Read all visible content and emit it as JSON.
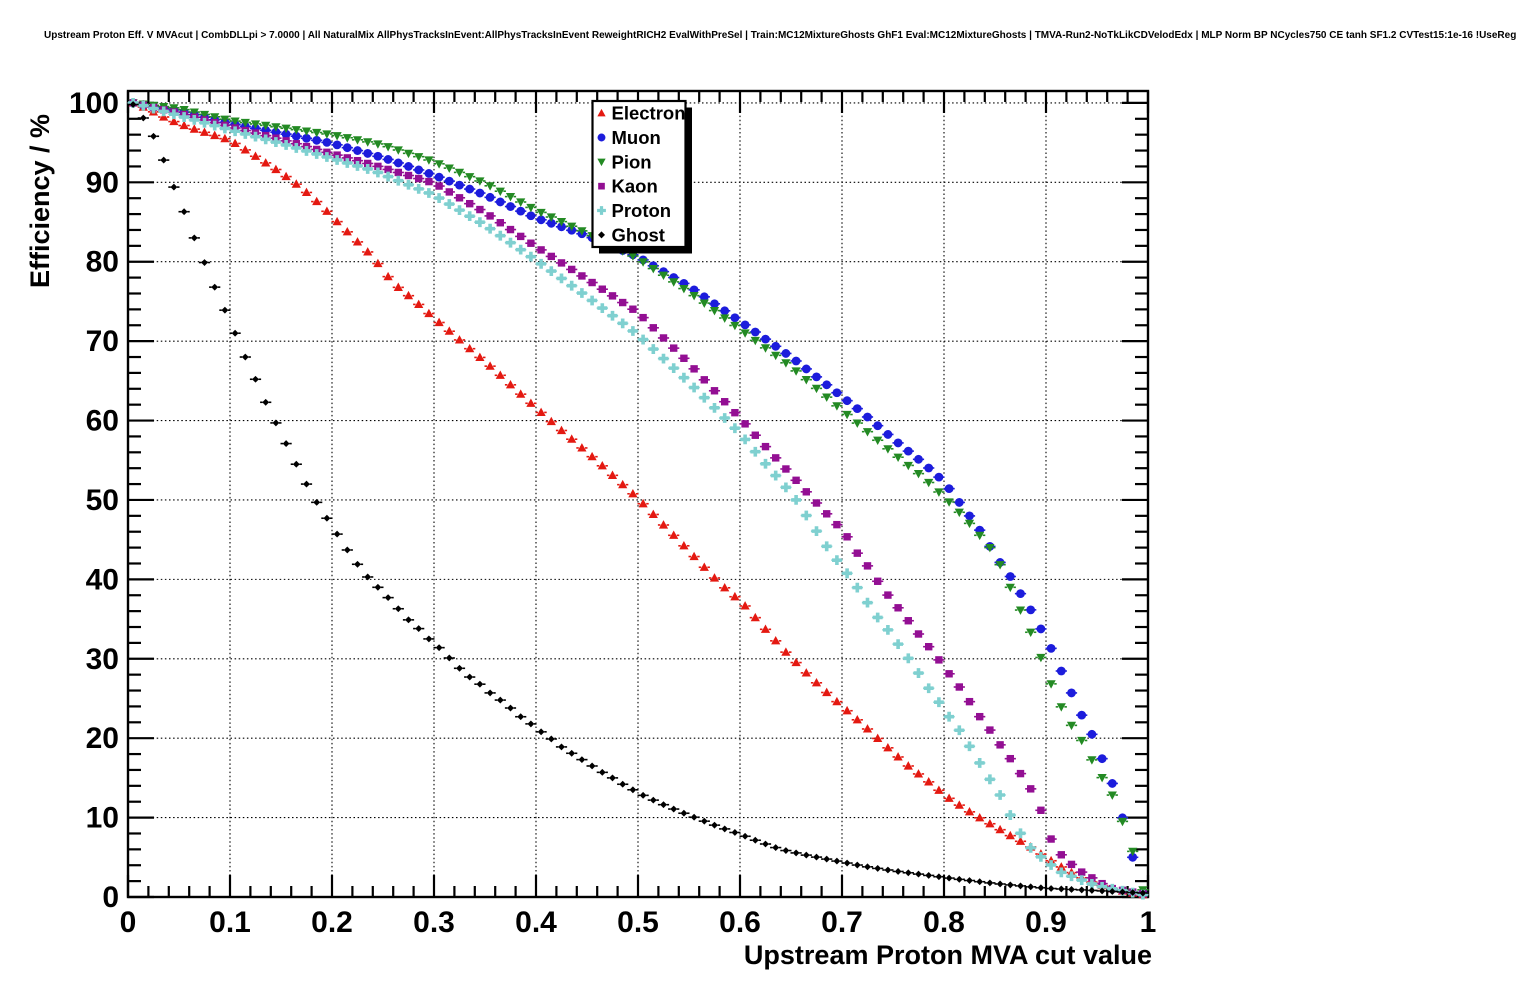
{
  "chart_data": {
    "type": "scatter",
    "title": "Upstream Proton Eff. V MVAcut | CombDLLpi > 7.0000 | All NaturalMix AllPhysTracksInEvent:AllPhysTracksInEvent ReweightRICH2 EvalWithPreSel | Train:MC12MixtureGhosts GhF1 Eval:MC12MixtureGhosts | TMVA-Run2-NoTkLikCDVelodEdx | MLP Norm BP NCycles750 CE tanh SF1.2 CVTest15:1e-16 !UseReg",
    "xlabel": "Upstream Proton MVA cut value",
    "ylabel": "Efficiency / %",
    "xlim": [
      0,
      1
    ],
    "ylim": [
      0,
      101.5
    ],
    "grid": "dotted",
    "legend_position": "top-center-inside",
    "x_ticks": {
      "values": [
        0,
        0.1,
        0.2,
        0.3,
        0.4,
        0.5,
        0.6,
        0.7,
        0.8,
        0.9,
        1
      ],
      "labels": [
        "0",
        "0.1",
        "0.2",
        "0.3",
        "0.4",
        "0.5",
        "0.6",
        "0.7",
        "0.8",
        "0.9",
        "1"
      ],
      "minor_step": 0.02
    },
    "y_ticks": {
      "values": [
        0,
        10,
        20,
        30,
        40,
        50,
        60,
        70,
        80,
        90,
        100
      ],
      "labels": [
        "0",
        "10",
        "20",
        "30",
        "40",
        "50",
        "60",
        "70",
        "80",
        "90",
        "100"
      ],
      "minor_step": 2
    },
    "marker_sampling": {
      "start": 0.005,
      "step": 0.01,
      "count": 100
    },
    "series": [
      {
        "name": "Electron",
        "color": "#e41911",
        "marker": "triangle-up",
        "control_points": [
          [
            0.005,
            100
          ],
          [
            0.02,
            99.2
          ],
          [
            0.04,
            97.9
          ],
          [
            0.06,
            96.9
          ],
          [
            0.08,
            96.1
          ],
          [
            0.1,
            95.3
          ],
          [
            0.126,
            93.2
          ],
          [
            0.15,
            91.2
          ],
          [
            0.17,
            89.3
          ],
          [
            0.19,
            87
          ],
          [
            0.21,
            84.4
          ],
          [
            0.24,
            80.6
          ],
          [
            0.26,
            77.3
          ],
          [
            0.28,
            75.2
          ],
          [
            0.3,
            72.9
          ],
          [
            0.32,
            70.7
          ],
          [
            0.34,
            68.5
          ],
          [
            0.36,
            66.3
          ],
          [
            0.38,
            63.9
          ],
          [
            0.4,
            61.6
          ],
          [
            0.42,
            59.3
          ],
          [
            0.44,
            57.1
          ],
          [
            0.46,
            54.9
          ],
          [
            0.48,
            52.5
          ],
          [
            0.5,
            50.2
          ],
          [
            0.52,
            47.5
          ],
          [
            0.54,
            44.9
          ],
          [
            0.56,
            42.2
          ],
          [
            0.58,
            39.5
          ],
          [
            0.604,
            36.8
          ],
          [
            0.623,
            34
          ],
          [
            0.643,
            31.1
          ],
          [
            0.662,
            28.6
          ],
          [
            0.682,
            26.1
          ],
          [
            0.702,
            23.8
          ],
          [
            0.723,
            21.4
          ],
          [
            0.744,
            18.9
          ],
          [
            0.764,
            16.6
          ],
          [
            0.785,
            14.5
          ],
          [
            0.803,
            12.6
          ],
          [
            0.824,
            10.8
          ],
          [
            0.844,
            9.3
          ],
          [
            0.864,
            7.8
          ],
          [
            0.885,
            6.3
          ],
          [
            0.902,
            4.8
          ],
          [
            0.92,
            3.4
          ],
          [
            0.94,
            2.1
          ],
          [
            0.96,
            1.2
          ],
          [
            0.98,
            0.6
          ],
          [
            0.995,
            0.3
          ]
        ]
      },
      {
        "name": "Muon",
        "color": "#1c1cdc",
        "marker": "circle",
        "control_points": [
          [
            0.005,
            100
          ],
          [
            0.05,
            99
          ],
          [
            0.1,
            97.4
          ],
          [
            0.15,
            96.2
          ],
          [
            0.2,
            94.9
          ],
          [
            0.25,
            93.1
          ],
          [
            0.3,
            90.9
          ],
          [
            0.35,
            88.4
          ],
          [
            0.4,
            85.5
          ],
          [
            0.45,
            83.3
          ],
          [
            0.5,
            80.6
          ],
          [
            0.55,
            76.9
          ],
          [
            0.6,
            72.5
          ],
          [
            0.65,
            68
          ],
          [
            0.7,
            63
          ],
          [
            0.72,
            61
          ],
          [
            0.75,
            57.7
          ],
          [
            0.78,
            54.6
          ],
          [
            0.8,
            52.3
          ],
          [
            0.812,
            50.2
          ],
          [
            0.822,
            48.5
          ],
          [
            0.832,
            46.8
          ],
          [
            0.843,
            44.6
          ],
          [
            0.851,
            42.8
          ],
          [
            0.863,
            40.8
          ],
          [
            0.873,
            38.6
          ],
          [
            0.884,
            36.4
          ],
          [
            0.894,
            34
          ],
          [
            0.904,
            31.6
          ],
          [
            0.913,
            29
          ],
          [
            0.923,
            26.3
          ],
          [
            0.932,
            23.6
          ],
          [
            0.944,
            20.8
          ],
          [
            0.953,
            18
          ],
          [
            0.963,
            15.1
          ],
          [
            0.972,
            11.5
          ],
          [
            0.983,
            5.9
          ],
          [
            0.995,
            0.5
          ]
        ]
      },
      {
        "name": "Pion",
        "color": "#238a23",
        "marker": "triangle-down",
        "control_points": [
          [
            0.005,
            100
          ],
          [
            0.05,
            99.3
          ],
          [
            0.1,
            97.8
          ],
          [
            0.15,
            96.9
          ],
          [
            0.2,
            96
          ],
          [
            0.25,
            94.7
          ],
          [
            0.3,
            92.6
          ],
          [
            0.35,
            89.9
          ],
          [
            0.4,
            86.5
          ],
          [
            0.45,
            83.6
          ],
          [
            0.5,
            80.4
          ],
          [
            0.55,
            76.2
          ],
          [
            0.6,
            71.5
          ],
          [
            0.65,
            66.8
          ],
          [
            0.7,
            61.3
          ],
          [
            0.75,
            55.9
          ],
          [
            0.78,
            52.8
          ],
          [
            0.8,
            50.4
          ],
          [
            0.82,
            47.8
          ],
          [
            0.84,
            44.8
          ],
          [
            0.85,
            43.2
          ],
          [
            0.86,
            40.5
          ],
          [
            0.87,
            37.5
          ],
          [
            0.881,
            34.5
          ],
          [
            0.891,
            31.6
          ],
          [
            0.901,
            28
          ],
          [
            0.911,
            25.1
          ],
          [
            0.92,
            22.5
          ],
          [
            0.933,
            20.2
          ],
          [
            0.951,
            15.8
          ],
          [
            0.963,
            13.5
          ],
          [
            0.982,
            7.2
          ],
          [
            0.995,
            0.9
          ]
        ]
      },
      {
        "name": "Kaon",
        "color": "#930f93",
        "marker": "square",
        "control_points": [
          [
            0.005,
            100
          ],
          [
            0.05,
            98.7
          ],
          [
            0.1,
            97
          ],
          [
            0.15,
            95.4
          ],
          [
            0.2,
            93.6
          ],
          [
            0.24,
            92.2
          ],
          [
            0.3,
            89.9
          ],
          [
            0.35,
            86.2
          ],
          [
            0.4,
            81.9
          ],
          [
            0.45,
            77.8
          ],
          [
            0.5,
            73.6
          ],
          [
            0.55,
            67.2
          ],
          [
            0.6,
            60.3
          ],
          [
            0.63,
            56
          ],
          [
            0.65,
            53.2
          ],
          [
            0.67,
            50.3
          ],
          [
            0.703,
            45.8
          ],
          [
            0.713,
            43.6
          ],
          [
            0.723,
            42.1
          ],
          [
            0.732,
            40.3
          ],
          [
            0.742,
            38.5
          ],
          [
            0.752,
            36.9
          ],
          [
            0.762,
            35.3
          ],
          [
            0.772,
            33.6
          ],
          [
            0.782,
            32
          ],
          [
            0.792,
            30.4
          ],
          [
            0.802,
            28.6
          ],
          [
            0.813,
            26.8
          ],
          [
            0.822,
            25.2
          ],
          [
            0.832,
            23.2
          ],
          [
            0.843,
            21.4
          ],
          [
            0.853,
            19.5
          ],
          [
            0.863,
            17.8
          ],
          [
            0.873,
            15.9
          ],
          [
            0.883,
            14.1
          ],
          [
            0.893,
            11.7
          ],
          [
            0.903,
            7.8
          ],
          [
            0.911,
            5.8
          ],
          [
            0.93,
            3.5
          ],
          [
            0.963,
            1.1
          ],
          [
            0.995,
            0.4
          ]
        ]
      },
      {
        "name": "Proton",
        "color": "#7fd0d0",
        "marker": "plus",
        "control_points": [
          [
            0.005,
            100
          ],
          [
            0.05,
            98.4
          ],
          [
            0.1,
            96.6
          ],
          [
            0.15,
            94.9
          ],
          [
            0.2,
            93
          ],
          [
            0.24,
            91.5
          ],
          [
            0.3,
            88.4
          ],
          [
            0.35,
            84.6
          ],
          [
            0.4,
            80.2
          ],
          [
            0.45,
            75.6
          ],
          [
            0.5,
            70.8
          ],
          [
            0.55,
            64.8
          ],
          [
            0.6,
            58.4
          ],
          [
            0.62,
            55.3
          ],
          [
            0.653,
            50.4
          ],
          [
            0.682,
            44.7
          ],
          [
            0.692,
            42.9
          ],
          [
            0.702,
            41.3
          ],
          [
            0.712,
            39.5
          ],
          [
            0.722,
            37.7
          ],
          [
            0.731,
            35.8
          ],
          [
            0.743,
            34
          ],
          [
            0.753,
            32.2
          ],
          [
            0.762,
            30.6
          ],
          [
            0.772,
            28.8
          ],
          [
            0.782,
            26.8
          ],
          [
            0.792,
            25.1
          ],
          [
            0.802,
            23.2
          ],
          [
            0.813,
            21.4
          ],
          [
            0.823,
            19.4
          ],
          [
            0.833,
            17.3
          ],
          [
            0.843,
            15.2
          ],
          [
            0.854,
            13.1
          ],
          [
            0.863,
            10.8
          ],
          [
            0.873,
            8.4
          ],
          [
            0.884,
            6.3
          ],
          [
            0.9,
            4.5
          ],
          [
            0.915,
            3.1
          ],
          [
            0.95,
            1.4
          ],
          [
            0.995,
            0.3
          ]
        ]
      },
      {
        "name": "Ghost",
        "color": "#000000",
        "marker": "diamond",
        "control_points": [
          [
            0.005,
            99.8
          ],
          [
            0.015,
            98.1
          ],
          [
            0.025,
            95.8
          ],
          [
            0.035,
            92.8
          ],
          [
            0.045,
            89.4
          ],
          [
            0.055,
            86.3
          ],
          [
            0.065,
            83
          ],
          [
            0.075,
            79.9
          ],
          [
            0.085,
            76.8
          ],
          [
            0.095,
            73.9
          ],
          [
            0.105,
            71
          ],
          [
            0.115,
            68
          ],
          [
            0.125,
            65.2
          ],
          [
            0.135,
            62.3
          ],
          [
            0.145,
            59.7
          ],
          [
            0.155,
            57.1
          ],
          [
            0.165,
            54.5
          ],
          [
            0.175,
            52
          ],
          [
            0.185,
            49.7
          ],
          [
            0.195,
            47.7
          ],
          [
            0.205,
            45.7
          ],
          [
            0.215,
            43.7
          ],
          [
            0.225,
            41.9
          ],
          [
            0.235,
            40.3
          ],
          [
            0.245,
            39
          ],
          [
            0.255,
            37.7
          ],
          [
            0.265,
            36.3
          ],
          [
            0.275,
            34.9
          ],
          [
            0.285,
            33.8
          ],
          [
            0.295,
            32.5
          ],
          [
            0.305,
            31.4
          ],
          [
            0.315,
            30.1
          ],
          [
            0.325,
            28.8
          ],
          [
            0.335,
            27.7
          ],
          [
            0.345,
            26.8
          ],
          [
            0.355,
            25.7
          ],
          [
            0.365,
            24.8
          ],
          [
            0.375,
            23.8
          ],
          [
            0.385,
            22.7
          ],
          [
            0.395,
            21.8
          ],
          [
            0.405,
            20.8
          ],
          [
            0.415,
            19.9
          ],
          [
            0.425,
            18.9
          ],
          [
            0.435,
            18.1
          ],
          [
            0.445,
            17.3
          ],
          [
            0.455,
            16.5
          ],
          [
            0.465,
            15.7
          ],
          [
            0.475,
            15
          ],
          [
            0.485,
            14.2
          ],
          [
            0.495,
            13.5
          ],
          [
            0.505,
            12.8
          ],
          [
            0.52,
            11.9
          ],
          [
            0.54,
            10.8
          ],
          [
            0.56,
            9.8
          ],
          [
            0.58,
            8.8
          ],
          [
            0.6,
            7.9
          ],
          [
            0.62,
            6.9
          ],
          [
            0.64,
            6
          ],
          [
            0.66,
            5.4
          ],
          [
            0.68,
            4.9
          ],
          [
            0.7,
            4.4
          ],
          [
            0.72,
            3.9
          ],
          [
            0.75,
            3.3
          ],
          [
            0.78,
            2.8
          ],
          [
            0.81,
            2.3
          ],
          [
            0.85,
            1.7
          ],
          [
            0.9,
            1.1
          ],
          [
            0.95,
            0.8
          ],
          [
            0.995,
            0.5
          ]
        ]
      }
    ]
  }
}
